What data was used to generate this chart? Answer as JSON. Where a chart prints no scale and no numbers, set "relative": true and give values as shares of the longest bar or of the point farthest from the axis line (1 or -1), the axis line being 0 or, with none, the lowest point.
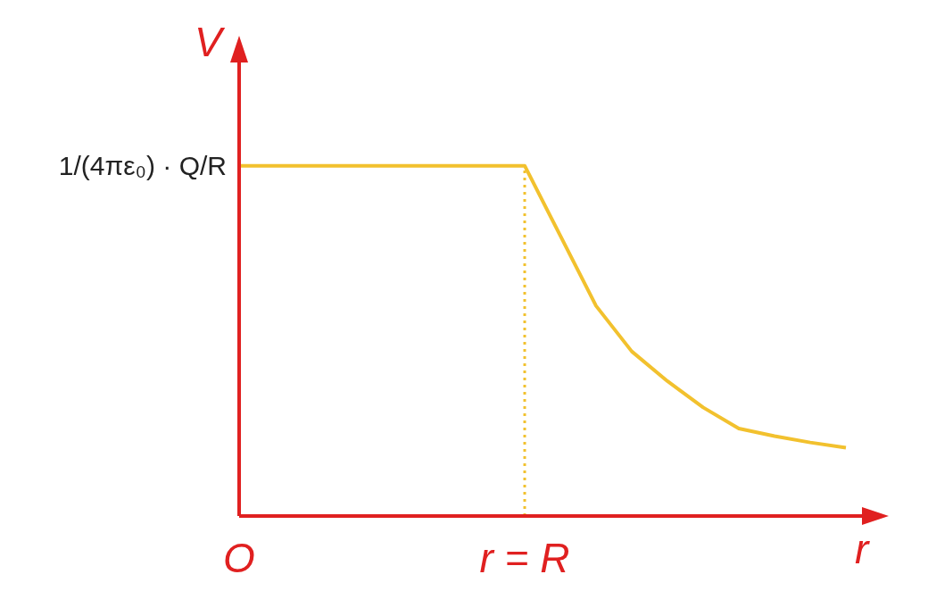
{
  "chart_data": {
    "type": "line",
    "relative": true,
    "xlabel": "r",
    "ylabel": "V",
    "categories": [
      "O",
      null,
      null,
      null,
      null,
      null,
      null,
      null,
      "r = R",
      null,
      null,
      null,
      null,
      null,
      null,
      null,
      null,
      null
    ],
    "annotations": [
      {
        "text": "1/(4πε₀) · Q/R",
        "x": "O",
        "y": 1
      }
    ],
    "ref_lines": [
      {
        "axis": "x",
        "value": "r = R",
        "label": null,
        "color": "#f2c12e",
        "line_style": "dotted"
      }
    ],
    "marker": "none",
    "line_style": "solid",
    "grid": false,
    "legend": false,
    "series": [
      {
        "color": "#f2c12e",
        "values": [
          1,
          1,
          1,
          1,
          1,
          1,
          1,
          1,
          1,
          0.8,
          0.6,
          0.47,
          0.385,
          0.31,
          0.25,
          0.228,
          0.21,
          0.195
        ]
      }
    ]
  }
}
